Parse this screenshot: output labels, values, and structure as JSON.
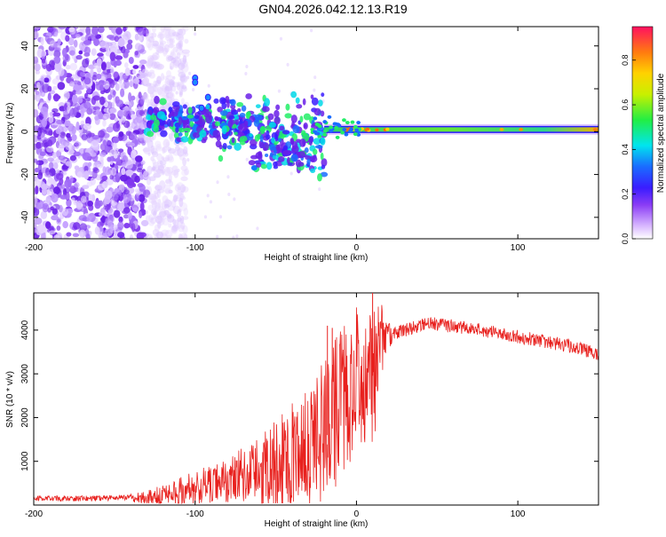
{
  "chart_data": [
    {
      "type": "heatmap",
      "title": "GN04.2026.042.12.13.R19",
      "xlabel": "Height of straight line (km)",
      "ylabel": "Frequency (Hz)",
      "xlim": [
        -200,
        150
      ],
      "ylim": [
        -50,
        49
      ],
      "xticks": [
        -200,
        -100,
        0,
        100
      ],
      "yticks": [
        -40,
        -20,
        0,
        20,
        40
      ],
      "colorbar": {
        "label": "Normalized spectral amplitude",
        "range": [
          0.0,
          0.95
        ],
        "ticks": [
          0.0,
          0.2,
          0.4,
          0.6,
          0.8
        ]
      },
      "features": {
        "noise_region_km": [
          -200,
          -130
        ],
        "scattered_signal_km": [
          -130,
          -20
        ],
        "steady_tone_km": [
          -20,
          150
        ],
        "steady_tone_frequency_hz": 1
      }
    },
    {
      "type": "line",
      "xlabel": "Height of straight line (km)",
      "ylabel": "SNR (10 * v/v)",
      "xlim": [
        -200,
        150
      ],
      "ylim": [
        0,
        4850
      ],
      "xticks": [
        -200,
        -100,
        0,
        100
      ],
      "yticks": [
        1000,
        2000,
        3000,
        4000
      ],
      "series": [
        {
          "name": "SNR",
          "color": "#e8211e",
          "x": [
            -200,
            -160,
            -130,
            -110,
            -90,
            -70,
            -50,
            -35,
            -25,
            -15,
            -8,
            0,
            8,
            15,
            20,
            30,
            45,
            70,
            100,
            130,
            150
          ],
          "y": [
            150,
            150,
            200,
            380,
            580,
            850,
            1150,
            1500,
            1850,
            2350,
            2850,
            3250,
            3500,
            3700,
            3850,
            4000,
            4150,
            4050,
            3850,
            3650,
            3450
          ],
          "spikes": [
            {
              "x": -18,
              "y": 4100
            },
            {
              "x": -15,
              "y": 4050
            },
            {
              "x": 10,
              "y": 4900
            }
          ]
        }
      ]
    }
  ]
}
